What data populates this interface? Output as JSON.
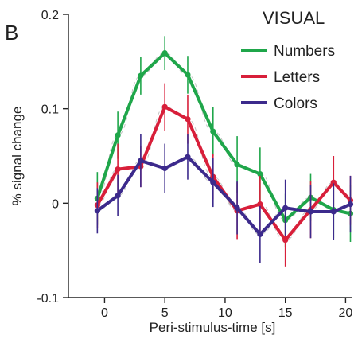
{
  "panel_letter": "B",
  "chart_data": {
    "type": "line",
    "title": "VISUAL",
    "xlabel": "Peri-stimulus-time [s]",
    "ylabel": "% signal change",
    "xlim": [
      -3,
      20.5
    ],
    "ylim": [
      -0.1,
      0.2
    ],
    "xticks": [
      0,
      5,
      10,
      15,
      20
    ],
    "yticks": [
      0.2,
      0.1,
      0,
      -0.1
    ],
    "xtick_labels": [
      "0",
      "5",
      "10",
      "15",
      "20"
    ],
    "ytick_labels": [
      "0.2",
      "0.1",
      "0",
      "-0.1"
    ],
    "legend_position": "top-right",
    "grid": false,
    "x": [
      -0.6,
      1.1,
      3.0,
      5.0,
      6.9,
      9.0,
      11.0,
      12.9,
      15.0,
      17.1,
      19.0,
      20.4
    ],
    "series": [
      {
        "name": "Numbers",
        "color": "#1fa64a",
        "values": [
          0.005,
          0.072,
          0.135,
          0.159,
          0.136,
          0.076,
          0.041,
          0.031,
          -0.018,
          0.006,
          -0.007,
          -0.011
        ],
        "error": [
          0.028,
          0.025,
          0.02,
          0.018,
          0.02,
          0.026,
          0.03,
          0.028,
          0.028,
          0.025,
          0.03,
          0.03
        ]
      },
      {
        "name": "Letters",
        "color": "#d81f3a",
        "values": [
          -0.002,
          0.036,
          0.039,
          0.102,
          0.089,
          0.028,
          -0.008,
          -0.001,
          -0.039,
          -0.007,
          0.022,
          0.003
        ],
        "error": [
          0.024,
          0.027,
          0.022,
          0.025,
          0.026,
          0.024,
          0.03,
          0.03,
          0.028,
          0.03,
          0.028,
          0.026
        ]
      },
      {
        "name": "Colors",
        "color": "#3c2a8c",
        "values": [
          -0.008,
          0.008,
          0.045,
          0.037,
          0.049,
          0.022,
          -0.005,
          -0.033,
          -0.005,
          -0.009,
          -0.009,
          -0.001
        ],
        "error": [
          0.024,
          0.022,
          0.028,
          0.026,
          0.024,
          0.026,
          0.028,
          0.03,
          0.03,
          0.028,
          0.03,
          0.03
        ]
      }
    ]
  }
}
